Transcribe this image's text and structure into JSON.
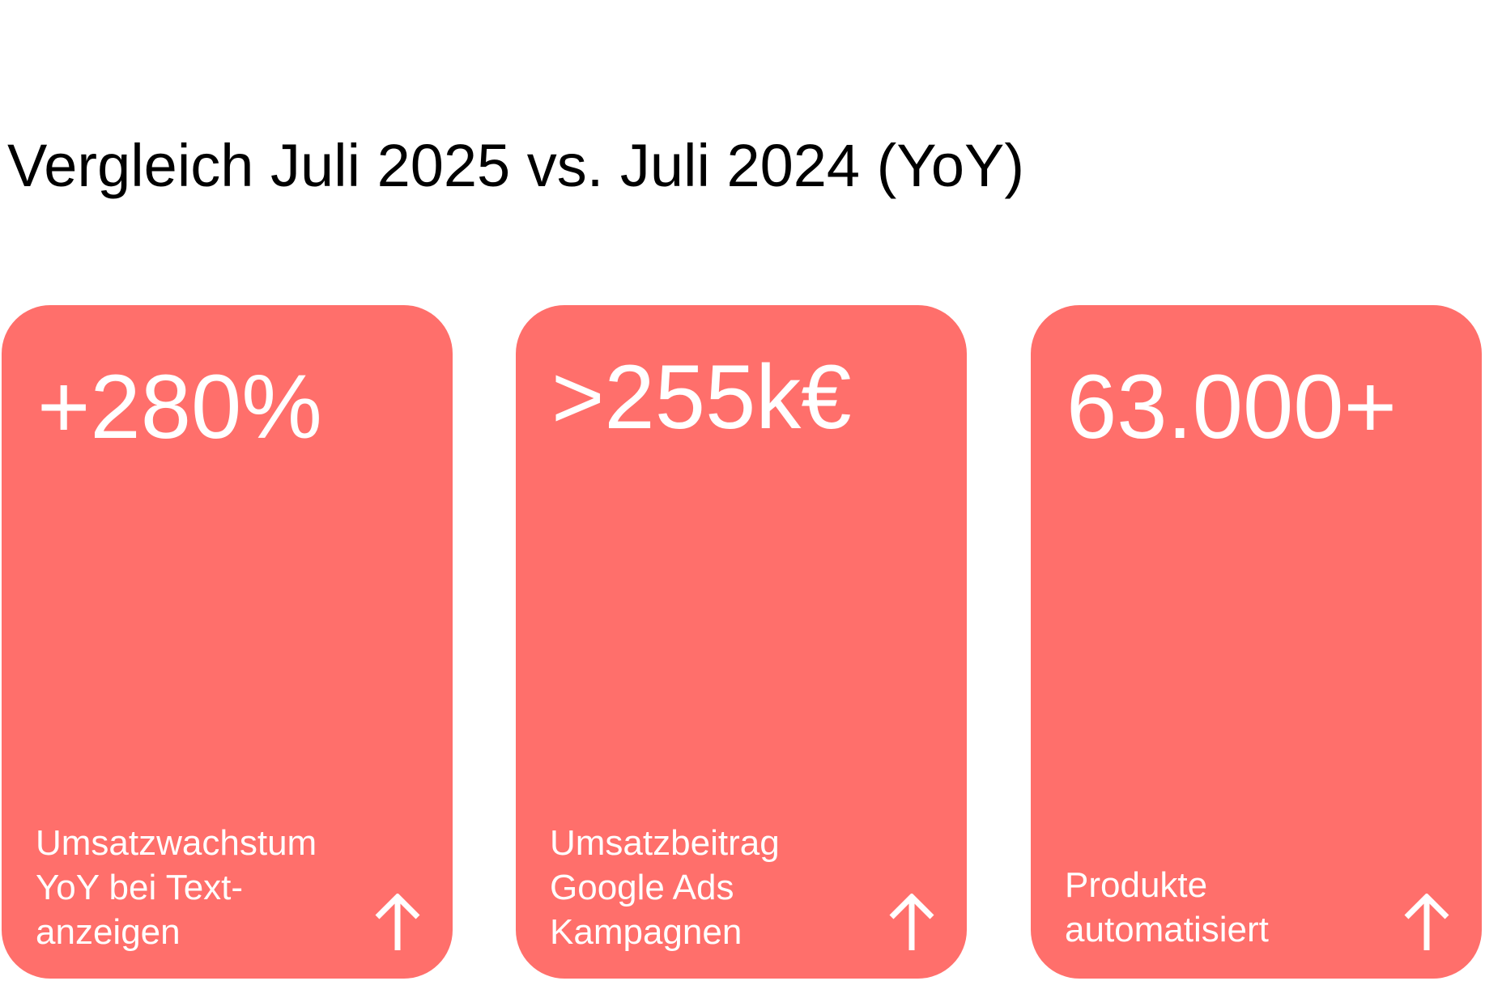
{
  "header": {
    "title": "Vergleich Juli 2025 vs. Juli 2024 (YoY)"
  },
  "cards": [
    {
      "value": "+280%",
      "label_lines": [
        "Umsatzwachstum",
        "YoY bei Text-",
        "anzeigen"
      ]
    },
    {
      "value": ">255k€",
      "label_lines": [
        "Umsatzbeitrag",
        "Google Ads",
        "Kampagnen"
      ]
    },
    {
      "value": "63.000+",
      "label_lines": [
        "Produkte",
        "automatisiert"
      ]
    }
  ]
}
